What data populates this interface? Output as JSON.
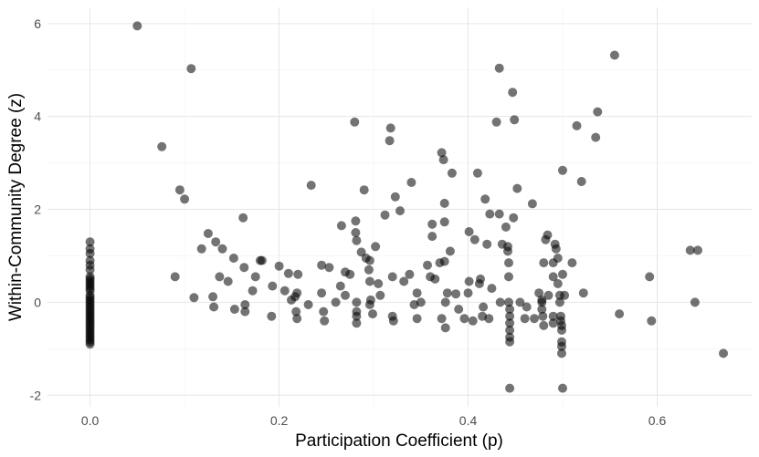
{
  "chart_data": {
    "type": "scatter",
    "title": "",
    "xlabel": "Participation Coefficient (p)",
    "ylabel": "Within-Community Degree (z)",
    "xlim": [
      -0.045,
      0.7
    ],
    "ylim": [
      -2.25,
      6.35
    ],
    "xticks": [
      0.0,
      0.2,
      0.4,
      0.6
    ],
    "xtick_labels": [
      "0.0",
      "0.2",
      "0.4",
      "0.6"
    ],
    "yticks": [
      -2,
      0,
      2,
      4,
      6
    ],
    "ytick_labels": [
      "-2",
      "0",
      "2",
      "4",
      "6"
    ],
    "grid": true,
    "theme": "minimal",
    "marker_color": "#000000",
    "marker_opacity": 0.55,
    "points": [
      [
        0.0,
        1.3
      ],
      [
        0.0,
        1.15
      ],
      [
        0.0,
        1.05
      ],
      [
        0.0,
        0.9
      ],
      [
        0.0,
        0.8
      ],
      [
        0.0,
        0.7
      ],
      [
        0.0,
        0.55
      ],
      [
        0.0,
        0.5
      ],
      [
        0.0,
        0.45
      ],
      [
        0.0,
        0.4
      ],
      [
        0.0,
        0.35
      ],
      [
        0.0,
        0.3
      ],
      [
        0.0,
        0.25
      ],
      [
        0.0,
        0.15
      ],
      [
        0.0,
        0.1
      ],
      [
        0.0,
        0.05
      ],
      [
        0.0,
        0.0
      ],
      [
        0.0,
        -0.05
      ],
      [
        0.0,
        -0.1
      ],
      [
        0.0,
        -0.15
      ],
      [
        0.0,
        -0.2
      ],
      [
        0.0,
        -0.25
      ],
      [
        0.0,
        -0.3
      ],
      [
        0.0,
        -0.35
      ],
      [
        0.0,
        -0.4
      ],
      [
        0.0,
        -0.45
      ],
      [
        0.0,
        -0.5
      ],
      [
        0.0,
        -0.55
      ],
      [
        0.0,
        -0.6
      ],
      [
        0.0,
        -0.65
      ],
      [
        0.0,
        -0.7
      ],
      [
        0.0,
        -0.75
      ],
      [
        0.0,
        -0.8
      ],
      [
        0.0,
        -0.85
      ],
      [
        0.0,
        -0.9
      ],
      [
        0.05,
        5.95
      ],
      [
        0.076,
        3.35
      ],
      [
        0.09,
        0.55
      ],
      [
        0.095,
        2.42
      ],
      [
        0.1,
        2.22
      ],
      [
        0.107,
        5.03
      ],
      [
        0.11,
        0.1
      ],
      [
        0.118,
        1.15
      ],
      [
        0.125,
        1.48
      ],
      [
        0.13,
        0.12
      ],
      [
        0.131,
        -0.1
      ],
      [
        0.133,
        1.3
      ],
      [
        0.137,
        0.55
      ],
      [
        0.14,
        1.15
      ],
      [
        0.146,
        0.45
      ],
      [
        0.152,
        0.95
      ],
      [
        0.153,
        -0.15
      ],
      [
        0.162,
        1.82
      ],
      [
        0.163,
        0.75
      ],
      [
        0.164,
        -0.05
      ],
      [
        0.164,
        -0.2
      ],
      [
        0.172,
        0.25
      ],
      [
        0.175,
        0.55
      ],
      [
        0.18,
        0.9
      ],
      [
        0.182,
        0.9
      ],
      [
        0.192,
        -0.3
      ],
      [
        0.193,
        0.35
      ],
      [
        0.2,
        0.78
      ],
      [
        0.206,
        0.25
      ],
      [
        0.21,
        0.62
      ],
      [
        0.213,
        0.05
      ],
      [
        0.217,
        0.12
      ],
      [
        0.218,
        -0.2
      ],
      [
        0.219,
        0.2
      ],
      [
        0.219,
        -0.35
      ],
      [
        0.22,
        0.6
      ],
      [
        0.231,
        -0.05
      ],
      [
        0.234,
        2.52
      ],
      [
        0.245,
        0.2
      ],
      [
        0.245,
        0.8
      ],
      [
        0.247,
        -0.2
      ],
      [
        0.248,
        -0.4
      ],
      [
        0.253,
        0.75
      ],
      [
        0.26,
        0.0
      ],
      [
        0.265,
        0.35
      ],
      [
        0.266,
        1.65
      ],
      [
        0.27,
        0.65
      ],
      [
        0.27,
        0.15
      ],
      [
        0.275,
        0.6
      ],
      [
        0.28,
        3.88
      ],
      [
        0.281,
        1.75
      ],
      [
        0.281,
        1.5
      ],
      [
        0.282,
        1.33
      ],
      [
        0.282,
        0.0
      ],
      [
        0.282,
        -0.2
      ],
      [
        0.282,
        -0.3
      ],
      [
        0.282,
        -0.45
      ],
      [
        0.287,
        1.08
      ],
      [
        0.29,
        2.42
      ],
      [
        0.292,
        0.95
      ],
      [
        0.295,
        0.7
      ],
      [
        0.296,
        0.9
      ],
      [
        0.296,
        0.45
      ],
      [
        0.296,
        -0.05
      ],
      [
        0.297,
        0.05
      ],
      [
        0.299,
        -0.25
      ],
      [
        0.302,
        1.2
      ],
      [
        0.305,
        0.4
      ],
      [
        0.307,
        0.15
      ],
      [
        0.312,
        1.88
      ],
      [
        0.317,
        3.48
      ],
      [
        0.318,
        3.75
      ],
      [
        0.32,
        0.55
      ],
      [
        0.32,
        -0.3
      ],
      [
        0.321,
        -0.4
      ],
      [
        0.323,
        2.27
      ],
      [
        0.328,
        1.97
      ],
      [
        0.332,
        0.45
      ],
      [
        0.338,
        0.6
      ],
      [
        0.34,
        2.58
      ],
      [
        0.343,
        -0.05
      ],
      [
        0.346,
        0.2
      ],
      [
        0.346,
        -0.35
      ],
      [
        0.35,
        0.0
      ],
      [
        0.357,
        0.8
      ],
      [
        0.36,
        0.55
      ],
      [
        0.362,
        1.68
      ],
      [
        0.362,
        1.42
      ],
      [
        0.365,
        0.5
      ],
      [
        0.37,
        0.85
      ],
      [
        0.372,
        3.22
      ],
      [
        0.372,
        -0.35
      ],
      [
        0.374,
        3.07
      ],
      [
        0.375,
        2.13
      ],
      [
        0.375,
        1.73
      ],
      [
        0.375,
        0.88
      ],
      [
        0.376,
        -0.55
      ],
      [
        0.376,
        0.0
      ],
      [
        0.378,
        0.2
      ],
      [
        0.381,
        1.1
      ],
      [
        0.383,
        2.78
      ],
      [
        0.387,
        0.18
      ],
      [
        0.39,
        -0.15
      ],
      [
        0.396,
        -0.35
      ],
      [
        0.4,
        0.2
      ],
      [
        0.401,
        1.52
      ],
      [
        0.401,
        0.45
      ],
      [
        0.405,
        -0.4
      ],
      [
        0.407,
        1.35
      ],
      [
        0.41,
        2.78
      ],
      [
        0.412,
        0.4
      ],
      [
        0.413,
        0.5
      ],
      [
        0.415,
        -0.3
      ],
      [
        0.416,
        -0.1
      ],
      [
        0.418,
        2.22
      ],
      [
        0.42,
        1.25
      ],
      [
        0.422,
        -0.35
      ],
      [
        0.423,
        1.9
      ],
      [
        0.425,
        0.3
      ],
      [
        0.43,
        3.88
      ],
      [
        0.433,
        5.04
      ],
      [
        0.433,
        1.9
      ],
      [
        0.434,
        0.0
      ],
      [
        0.436,
        1.25
      ],
      [
        0.44,
        1.62
      ],
      [
        0.442,
        1.2
      ],
      [
        0.442,
        1.1
      ],
      [
        0.443,
        0.85
      ],
      [
        0.443,
        0.55
      ],
      [
        0.443,
        0.0
      ],
      [
        0.444,
        -0.15
      ],
      [
        0.444,
        -0.3
      ],
      [
        0.444,
        -0.45
      ],
      [
        0.444,
        -0.6
      ],
      [
        0.444,
        -0.75
      ],
      [
        0.444,
        -0.85
      ],
      [
        0.444,
        -1.85
      ],
      [
        0.447,
        4.52
      ],
      [
        0.448,
        1.82
      ],
      [
        0.449,
        3.93
      ],
      [
        0.452,
        2.45
      ],
      [
        0.455,
        0.0
      ],
      [
        0.46,
        -0.35
      ],
      [
        0.462,
        -0.1
      ],
      [
        0.468,
        2.12
      ],
      [
        0.47,
        -0.35
      ],
      [
        0.475,
        0.2
      ],
      [
        0.478,
        0.05
      ],
      [
        0.478,
        0.0
      ],
      [
        0.478,
        -0.15
      ],
      [
        0.479,
        -0.3
      ],
      [
        0.48,
        -0.5
      ],
      [
        0.48,
        0.85
      ],
      [
        0.482,
        1.35
      ],
      [
        0.484,
        1.45
      ],
      [
        0.485,
        0.15
      ],
      [
        0.49,
        0.85
      ],
      [
        0.49,
        0.55
      ],
      [
        0.49,
        -0.3
      ],
      [
        0.49,
        -0.45
      ],
      [
        0.492,
        1.25
      ],
      [
        0.493,
        1.15
      ],
      [
        0.495,
        0.95
      ],
      [
        0.495,
        0.4
      ],
      [
        0.497,
        0.15
      ],
      [
        0.497,
        0.0
      ],
      [
        0.498,
        -0.3
      ],
      [
        0.498,
        -0.4
      ],
      [
        0.499,
        -0.5
      ],
      [
        0.499,
        -0.6
      ],
      [
        0.499,
        -0.85
      ],
      [
        0.499,
        -0.95
      ],
      [
        0.499,
        -1.1
      ],
      [
        0.5,
        -1.85
      ],
      [
        0.5,
        2.84
      ],
      [
        0.5,
        0.6
      ],
      [
        0.502,
        0.15
      ],
      [
        0.51,
        0.85
      ],
      [
        0.515,
        3.8
      ],
      [
        0.52,
        2.6
      ],
      [
        0.522,
        0.2
      ],
      [
        0.535,
        3.55
      ],
      [
        0.537,
        4.1
      ],
      [
        0.555,
        5.32
      ],
      [
        0.56,
        -0.25
      ],
      [
        0.592,
        0.55
      ],
      [
        0.594,
        -0.4
      ],
      [
        0.635,
        1.12
      ],
      [
        0.64,
        0.0
      ],
      [
        0.643,
        1.12
      ],
      [
        0.67,
        -1.1
      ]
    ]
  }
}
